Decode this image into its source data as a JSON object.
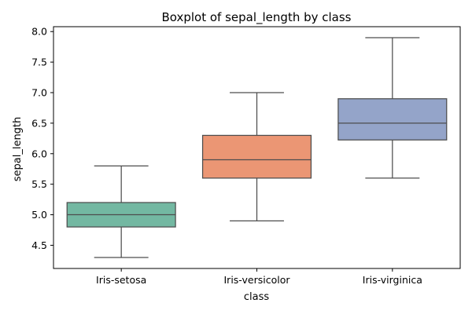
{
  "chart_data": {
    "type": "box",
    "title": "Boxplot of sepal_length by class",
    "xlabel": "class",
    "ylabel": "sepal_length",
    "ylim": [
      4.12,
      8.08
    ],
    "yticks": [
      "4.5",
      "5.0",
      "5.5",
      "6.0",
      "6.5",
      "7.0",
      "7.5",
      "8.0"
    ],
    "categories": [
      "Iris-setosa",
      "Iris-versicolor",
      "Iris-virginica"
    ],
    "boxes": [
      {
        "category": "Iris-setosa",
        "whisker_low": 4.3,
        "q1": 4.8,
        "median": 5.0,
        "q3": 5.2,
        "whisker_high": 5.8,
        "color": "#73b8a2"
      },
      {
        "category": "Iris-versicolor",
        "whisker_low": 4.9,
        "q1": 5.6,
        "median": 5.9,
        "q3": 6.3,
        "whisker_high": 7.0,
        "color": "#eb9674"
      },
      {
        "category": "Iris-virginica",
        "whisker_low": 5.6,
        "q1": 6.225,
        "median": 6.5,
        "q3": 6.9,
        "whisker_high": 7.9,
        "color": "#94a4c9"
      }
    ],
    "grid": false,
    "legend": "none",
    "line_color": "#4d4d4d"
  }
}
